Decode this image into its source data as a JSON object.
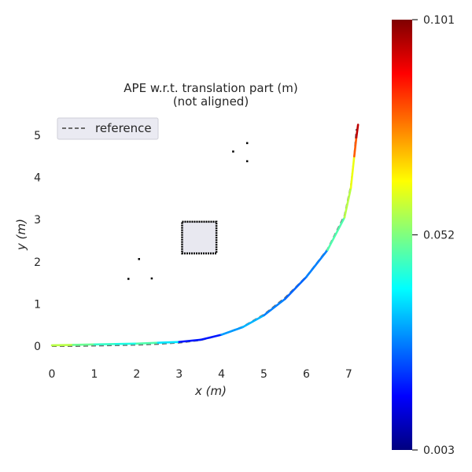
{
  "chart_data": {
    "type": "line",
    "title": "APE w.r.t. translation part (m)",
    "subtitle": "(not aligned)",
    "xlabel": "x (m)",
    "ylabel": "y (m)",
    "xlim": [
      0,
      7.5
    ],
    "ylim": [
      -0.45,
      5.55
    ],
    "xticks": [
      0,
      1,
      2,
      3,
      4,
      5,
      6,
      7
    ],
    "yticks": [
      0,
      1,
      2,
      3,
      4,
      5
    ],
    "grid": false,
    "legend": {
      "placement": "top-left",
      "entries": [
        {
          "label": "reference",
          "style": "dashed",
          "color": "#6b6b6b"
        }
      ]
    },
    "series": [
      {
        "name": "reference",
        "style": "dashed",
        "color": "#6b6b6b",
        "x": [
          0.0,
          0.5,
          1.0,
          1.5,
          2.0,
          2.5,
          3.0,
          3.5,
          4.0,
          4.5,
          5.0,
          5.5,
          6.0,
          6.5,
          6.9,
          7.05,
          7.13,
          7.16,
          7.18
        ],
        "y": [
          0.0,
          0.0,
          0.01,
          0.02,
          0.03,
          0.05,
          0.08,
          0.14,
          0.27,
          0.46,
          0.75,
          1.15,
          1.65,
          2.3,
          3.1,
          3.8,
          4.5,
          4.9,
          5.15
        ]
      },
      {
        "name": "",
        "style": "solid",
        "colorscale": "jet",
        "x": [
          0.0,
          0.5,
          1.0,
          1.5,
          2.0,
          2.5,
          3.0,
          3.5,
          4.0,
          4.5,
          5.0,
          5.5,
          6.0,
          6.5,
          6.9,
          7.05,
          7.13,
          7.18,
          7.22
        ],
        "y": [
          0.02,
          0.03,
          0.04,
          0.05,
          0.06,
          0.08,
          0.1,
          0.15,
          0.27,
          0.45,
          0.73,
          1.12,
          1.64,
          2.28,
          3.05,
          3.75,
          4.5,
          4.95,
          5.25
        ],
        "ape": [
          0.06,
          0.055,
          0.045,
          0.045,
          0.04,
          0.055,
          0.02,
          0.015,
          0.02,
          0.04,
          0.025,
          0.03,
          0.02,
          0.035,
          0.06,
          0.055,
          0.07,
          0.09,
          0.1
        ]
      }
    ],
    "obstacles": {
      "box": {
        "x": [
          3.07,
          3.88
        ],
        "y": [
          2.2,
          2.95
        ]
      },
      "points": [
        [
          4.27,
          4.62
        ],
        [
          4.6,
          4.82
        ],
        [
          4.6,
          4.39
        ],
        [
          2.05,
          2.07
        ],
        [
          1.8,
          1.6
        ],
        [
          2.35,
          1.61
        ]
      ]
    },
    "colorbar": {
      "min": 0.003,
      "max": 0.101,
      "ticks": [
        "0.003",
        "0.052",
        "0.101"
      ],
      "colormap": "jet"
    }
  }
}
